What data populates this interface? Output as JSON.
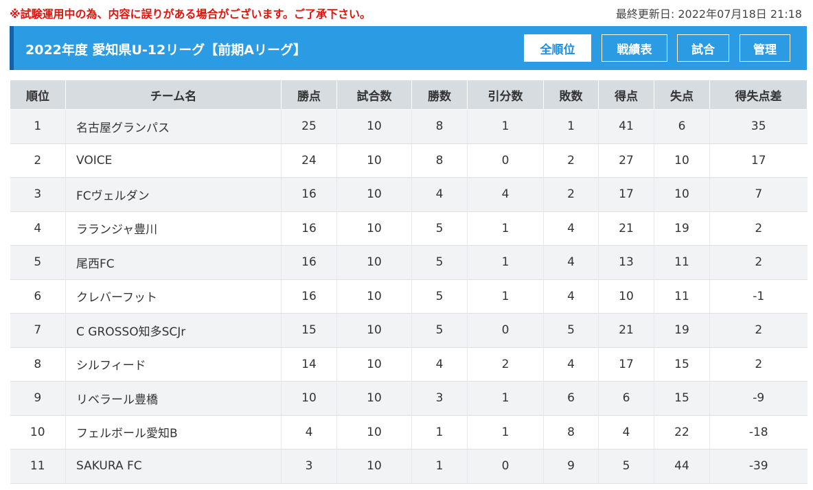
{
  "notice": "※試験運用中の為、内容に誤りがある場合がございます。ご了承下さい。",
  "updated": "最終更新日: 2022年07月18日 21:18",
  "colors": {
    "header_bg": "#2b9be3",
    "header_accent": "#1660a8",
    "notice": "#e3120b",
    "table_head": "#d6dce0"
  },
  "league_title": "2022年度 愛知県U-12リーグ【前期Aリーグ】",
  "nav": {
    "ranking": "全順位",
    "results": "戦績表",
    "matches": "試合",
    "admin": "管理"
  },
  "table": {
    "headers": [
      "順位",
      "チーム名",
      "勝点",
      "試合数",
      "勝数",
      "引分数",
      "敗数",
      "得点",
      "失点",
      "得失点差"
    ],
    "rows": [
      {
        "rank": "1",
        "team": "名古屋グランパス",
        "points": "25",
        "played": "10",
        "wins": "8",
        "draws": "1",
        "losses": "1",
        "gf": "41",
        "ga": "6",
        "gd": "35"
      },
      {
        "rank": "2",
        "team": "VOICE",
        "points": "24",
        "played": "10",
        "wins": "8",
        "draws": "0",
        "losses": "2",
        "gf": "27",
        "ga": "10",
        "gd": "17"
      },
      {
        "rank": "3",
        "team": "FCヴェルダン",
        "points": "16",
        "played": "10",
        "wins": "4",
        "draws": "4",
        "losses": "2",
        "gf": "17",
        "ga": "10",
        "gd": "7"
      },
      {
        "rank": "4",
        "team": "ラランジャ豊川",
        "points": "16",
        "played": "10",
        "wins": "5",
        "draws": "1",
        "losses": "4",
        "gf": "21",
        "ga": "19",
        "gd": "2"
      },
      {
        "rank": "5",
        "team": "尾西FC",
        "points": "16",
        "played": "10",
        "wins": "5",
        "draws": "1",
        "losses": "4",
        "gf": "13",
        "ga": "11",
        "gd": "2"
      },
      {
        "rank": "6",
        "team": "クレバーフット",
        "points": "16",
        "played": "10",
        "wins": "5",
        "draws": "1",
        "losses": "4",
        "gf": "10",
        "ga": "11",
        "gd": "-1"
      },
      {
        "rank": "7",
        "team": "C GROSSO知多SCJr",
        "points": "15",
        "played": "10",
        "wins": "5",
        "draws": "0",
        "losses": "5",
        "gf": "21",
        "ga": "19",
        "gd": "2"
      },
      {
        "rank": "8",
        "team": "シルフィード",
        "points": "14",
        "played": "10",
        "wins": "4",
        "draws": "2",
        "losses": "4",
        "gf": "17",
        "ga": "15",
        "gd": "2"
      },
      {
        "rank": "9",
        "team": "リベラール豊橋",
        "points": "10",
        "played": "10",
        "wins": "3",
        "draws": "1",
        "losses": "6",
        "gf": "6",
        "ga": "15",
        "gd": "-9"
      },
      {
        "rank": "10",
        "team": "フェルボール愛知B",
        "points": "4",
        "played": "10",
        "wins": "1",
        "draws": "1",
        "losses": "8",
        "gf": "4",
        "ga": "22",
        "gd": "-18"
      },
      {
        "rank": "11",
        "team": "SAKURA FC",
        "points": "3",
        "played": "10",
        "wins": "1",
        "draws": "0",
        "losses": "9",
        "gf": "5",
        "ga": "44",
        "gd": "-39"
      }
    ]
  }
}
